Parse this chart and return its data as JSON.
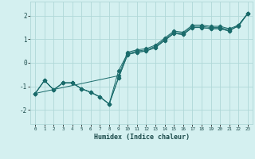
{
  "xlabel": "Humidex (Indice chaleur)",
  "bg_color": "#d4f0f0",
  "grid_color": "#b0d8d8",
  "line_color": "#1a6b6b",
  "xlim": [
    -0.5,
    23.5
  ],
  "ylim": [
    -2.6,
    2.6
  ],
  "yticks": [
    -2,
    -1,
    0,
    1,
    2
  ],
  "xticks": [
    0,
    1,
    2,
    3,
    4,
    5,
    6,
    7,
    8,
    9,
    10,
    11,
    12,
    13,
    14,
    15,
    16,
    17,
    18,
    19,
    20,
    21,
    22,
    23
  ],
  "series": [
    {
      "x": [
        0,
        1,
        2,
        3,
        4,
        5,
        6,
        7,
        8,
        9,
        10,
        11,
        12,
        13,
        14,
        15,
        16,
        17,
        18,
        19,
        20,
        21,
        22,
        23
      ],
      "y": [
        -1.3,
        -0.75,
        -1.15,
        -0.85,
        -0.85,
        -1.1,
        -1.25,
        -1.45,
        -1.75,
        -0.65,
        0.35,
        0.45,
        0.5,
        0.65,
        0.95,
        1.25,
        1.2,
        1.5,
        1.5,
        1.45,
        1.45,
        1.35,
        1.6,
        2.1
      ]
    },
    {
      "x": [
        0,
        1,
        2,
        3,
        4,
        5,
        6,
        7,
        8,
        9,
        10,
        11,
        12,
        13,
        14,
        15,
        16,
        17,
        18,
        19,
        20,
        21,
        22,
        23
      ],
      "y": [
        -1.3,
        -0.75,
        -1.15,
        -0.85,
        -0.85,
        -1.1,
        -1.25,
        -1.45,
        -1.75,
        -0.35,
        0.4,
        0.5,
        0.55,
        0.7,
        1.0,
        1.3,
        1.25,
        1.55,
        1.55,
        1.5,
        1.5,
        1.4,
        1.55,
        2.1
      ]
    },
    {
      "x": [
        0,
        9,
        10,
        11,
        12,
        13,
        14,
        15,
        16,
        17,
        18,
        19,
        20,
        21,
        22,
        23
      ],
      "y": [
        -1.3,
        -0.55,
        0.45,
        0.55,
        0.6,
        0.75,
        1.05,
        1.35,
        1.3,
        1.6,
        1.6,
        1.55,
        1.55,
        1.45,
        1.6,
        2.1
      ]
    },
    {
      "x": [
        0,
        1,
        2,
        3,
        4,
        5,
        6,
        7,
        8,
        9,
        10,
        11,
        12,
        13,
        14,
        15,
        16,
        17,
        18,
        19,
        20,
        21,
        22,
        23
      ],
      "y": [
        -1.3,
        -0.75,
        -1.15,
        -0.85,
        -0.85,
        -1.1,
        -1.25,
        -1.45,
        -1.75,
        -0.65,
        0.35,
        0.45,
        0.5,
        0.65,
        0.95,
        1.25,
        1.2,
        1.5,
        1.5,
        1.45,
        1.45,
        1.35,
        1.6,
        2.1
      ]
    }
  ]
}
